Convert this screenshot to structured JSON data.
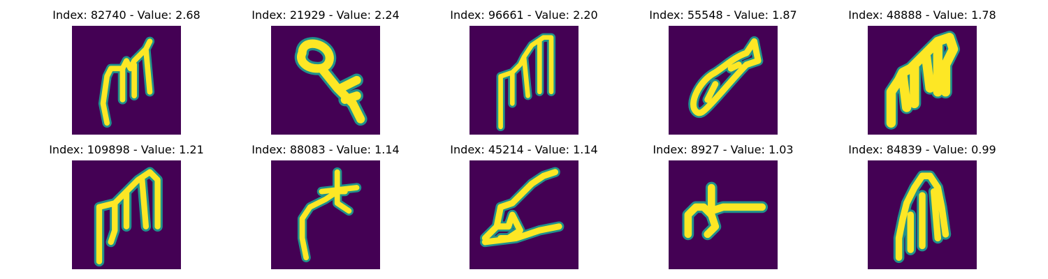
{
  "colors": {
    "background": "#440154",
    "mid_dark": "#31688e",
    "mid": "#21918c",
    "mid_light": "#35b779",
    "stroke": "#fde725"
  },
  "panels": [
    {
      "title": "Index: 82740 - Value: 2.68"
    },
    {
      "title": "Index: 21929 - Value: 2.24"
    },
    {
      "title": "Index: 96661 - Value: 2.20"
    },
    {
      "title": "Index: 55548 - Value: 1.87"
    },
    {
      "title": "Index: 48888 - Value: 1.78"
    },
    {
      "title": "Index: 109898 - Value: 1.21"
    },
    {
      "title": "Index: 88083 - Value: 1.14"
    },
    {
      "title": "Index: 45214 - Value: 1.14"
    },
    {
      "title": "Index: 8927 - Value: 1.03"
    },
    {
      "title": "Index: 84839 - Value: 0.99"
    }
  ]
}
